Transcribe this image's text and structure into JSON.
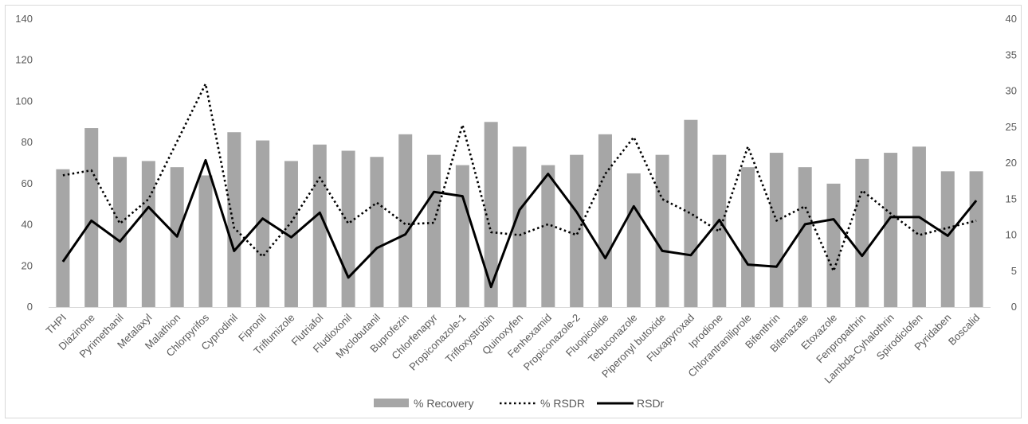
{
  "chart_data": {
    "type": "bar",
    "title": "",
    "xlabel": "",
    "ylabel": "",
    "y2label": "",
    "ylim": [
      0,
      140
    ],
    "y2lim": [
      0,
      40
    ],
    "yticks": [
      "0",
      "20",
      "40",
      "60",
      "80",
      "100",
      "120",
      "140"
    ],
    "y2ticks": [
      "0",
      "5",
      "10",
      "15",
      "20",
      "25",
      "30",
      "35",
      "40"
    ],
    "grid": false,
    "legend": "bottom",
    "categories": [
      "THPI",
      "Diazinone",
      "Pyrimethanil",
      "Metalaxyl",
      "Malathion",
      "Chlorpyrifos",
      "Cyprodinil",
      "Fipronil",
      "Triflumizole",
      "Flutriafol",
      "Fludioxonil",
      "Myclobutanil",
      "Buprofezin",
      "Chlorfenapyr",
      "Propiconazole-1",
      "Trifloxystrobin",
      "Quinoxyfen",
      "Fenhexamid",
      "Propiconazole-2",
      "Fluopicolide",
      "Tebuconazole",
      "Piperonyl butoxide",
      "Fluxapyroxad",
      "Iprodione",
      "Chlorantraniliprole",
      "Bifenthrin",
      "Bifenazate",
      "Etoxazole",
      "Fenpropathrin",
      "Lambda-Cyhalothrin",
      "Spirodiclofen",
      "Pyridaben",
      "Boscalid"
    ],
    "series": [
      {
        "name": "% Recovery",
        "kind": "bar",
        "axis": "left",
        "color": "#a6a6a6",
        "values": [
          67,
          87,
          73,
          71,
          68,
          64,
          85,
          81,
          71,
          79,
          76,
          73,
          84,
          74,
          69,
          90,
          78,
          69,
          74,
          84,
          65,
          74,
          91,
          74,
          68,
          75,
          68,
          60,
          72,
          75,
          78,
          66,
          66
        ]
      },
      {
        "name": "% RSDR",
        "kind": "line",
        "style": "dotted",
        "axis": "right",
        "color": "#000000",
        "values": [
          18.3,
          19,
          11.6,
          15,
          23,
          31,
          11,
          7,
          11.8,
          18,
          11.6,
          14.5,
          11.5,
          11.7,
          25.3,
          10.4,
          10,
          11.5,
          10,
          18.5,
          23.6,
          15,
          13,
          10.5,
          22.3,
          12,
          14,
          5,
          16.2,
          13,
          10,
          11,
          12
        ]
      },
      {
        "name": "RSDr",
        "kind": "line",
        "style": "solid",
        "axis": "right",
        "color": "#000000",
        "values": [
          6.3,
          12,
          9.1,
          13.9,
          9.8,
          20.4,
          7.8,
          12.3,
          9.7,
          13.1,
          4.1,
          8.2,
          10.1,
          16,
          15.4,
          2.8,
          13.5,
          18.5,
          13.2,
          6.8,
          14,
          7.8,
          7.2,
          12.1,
          5.9,
          5.6,
          11.5,
          12.2,
          7.1,
          12.5,
          12.5,
          9.9,
          14.8
        ]
      }
    ]
  }
}
